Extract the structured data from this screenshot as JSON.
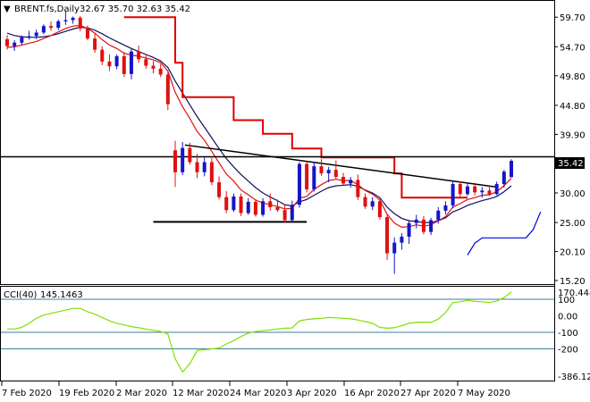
{
  "header": {
    "symbol_label": "BRENT.fs,Daily",
    "ohlc": "32.67 35.70 32.63 35.42"
  },
  "cci_header": {
    "label": "CCI(40)",
    "value": "145.1463"
  },
  "price_badge": "35.42",
  "cci_badge": "170.4447",
  "colors": {
    "bull": "#1515c8",
    "bear": "#e01010",
    "ma_fast": "#e01010",
    "ma_slow": "#101060",
    "stop_red": "#e00000",
    "stop_blue": "#0000e0",
    "cci": "#80e000",
    "cci_level": "#3c7f9a",
    "trend": "#000000"
  },
  "chart_data": [
    {
      "type": "candlestick",
      "y_ticks": [
        "59.70",
        "54.70",
        "49.80",
        "44.80",
        "39.90",
        "35.00",
        "30.00",
        "25.00",
        "20.10",
        "15.20"
      ],
      "ylim": [
        15.2,
        62.0
      ],
      "x_ticks": [
        "7 Feb 2020",
        "19 Feb 2020",
        "2 Mar 2020",
        "12 Mar 2020",
        "24 Mar 2020",
        "3 Apr 2020",
        "16 Apr 2020",
        "27 Apr 2020",
        "7 May 2020"
      ],
      "candles": [
        [
          56,
          56.7,
          54.2,
          54.8
        ],
        [
          54.8,
          55.8,
          54.0,
          55.4
        ],
        [
          55.4,
          56.6,
          55.0,
          56.3
        ],
        [
          56.3,
          57.4,
          55.9,
          56.5
        ],
        [
          56.5,
          57.6,
          56.0,
          57.1
        ],
        [
          57.1,
          58.5,
          56.8,
          58.2
        ],
        [
          58.2,
          59.0,
          57.4,
          57.9
        ],
        [
          57.9,
          59.3,
          57.5,
          59.0
        ],
        [
          59.0,
          60.8,
          58.4,
          59.2
        ],
        [
          59.2,
          59.8,
          58.6,
          59.6
        ],
        [
          59.6,
          59.9,
          57.3,
          57.8
        ],
        [
          57.8,
          58.3,
          55.8,
          56.1
        ],
        [
          56.1,
          56.9,
          53.7,
          54.2
        ],
        [
          54.2,
          54.8,
          51.6,
          52.2
        ],
        [
          52.2,
          53.4,
          50.6,
          51.4
        ],
        [
          51.4,
          53.4,
          50.9,
          53.1
        ],
        [
          53.1,
          53.8,
          49.6,
          50.1
        ],
        [
          50.1,
          54.4,
          49.2,
          53.9
        ],
        [
          53.9,
          54.9,
          52.0,
          52.6
        ],
        [
          52.6,
          53.4,
          51.0,
          51.5
        ],
        [
          51.5,
          52.3,
          50.2,
          51.0
        ],
        [
          51.0,
          51.8,
          49.6,
          50.0
        ],
        [
          50.0,
          50.5,
          44.0,
          45.0
        ],
        [
          37.2,
          38.8,
          31.0,
          33.5
        ],
        [
          33.5,
          38.6,
          33.0,
          37.6
        ],
        [
          37.6,
          38.5,
          34.8,
          35.2
        ],
        [
          35.2,
          36.6,
          32.5,
          33.5
        ],
        [
          33.5,
          36.0,
          32.8,
          35.2
        ],
        [
          35.2,
          35.9,
          31.3,
          31.8
        ],
        [
          31.8,
          32.8,
          28.9,
          29.3
        ],
        [
          29.3,
          30.3,
          26.6,
          27.1
        ],
        [
          27.1,
          29.9,
          26.8,
          29.4
        ],
        [
          29.4,
          29.9,
          26.1,
          26.6
        ],
        [
          26.6,
          29.1,
          26.3,
          28.5
        ],
        [
          28.5,
          28.9,
          26.0,
          26.3
        ],
        [
          26.3,
          29.1,
          26.0,
          28.6
        ],
        [
          28.6,
          29.9,
          27.0,
          27.6
        ],
        [
          27.6,
          28.9,
          26.8,
          27.1
        ],
        [
          27.1,
          28.1,
          25.0,
          25.4
        ],
        [
          25.4,
          28.7,
          25.1,
          28.0
        ],
        [
          28.0,
          35.2,
          27.5,
          34.9
        ],
        [
          34.9,
          35.3,
          30.1,
          30.6
        ],
        [
          30.6,
          35.2,
          30.2,
          34.5
        ],
        [
          34.5,
          35.7,
          32.9,
          33.3
        ],
        [
          33.3,
          34.4,
          31.8,
          33.9
        ],
        [
          33.9,
          35.5,
          32.3,
          32.7
        ],
        [
          32.7,
          33.4,
          31.2,
          31.6
        ],
        [
          31.6,
          32.7,
          30.9,
          32.2
        ],
        [
          32.2,
          33.1,
          28.8,
          29.3
        ],
        [
          29.3,
          29.9,
          27.3,
          27.7
        ],
        [
          27.7,
          29.3,
          27.1,
          28.6
        ],
        [
          28.6,
          29.0,
          25.5,
          25.9
        ],
        [
          25.9,
          26.3,
          18.7,
          19.8
        ],
        [
          19.8,
          22.5,
          16.3,
          21.6
        ],
        [
          21.6,
          23.2,
          20.4,
          22.6
        ],
        [
          22.6,
          25.4,
          21.4,
          24.9
        ],
        [
          24.9,
          26.3,
          24.0,
          25.5
        ],
        [
          25.5,
          26.1,
          23.0,
          23.4
        ],
        [
          23.4,
          25.8,
          22.9,
          25.4
        ],
        [
          25.4,
          27.6,
          24.8,
          27.0
        ],
        [
          27.0,
          28.6,
          26.4,
          27.9
        ],
        [
          27.9,
          31.9,
          27.4,
          31.5
        ],
        [
          31.5,
          31.9,
          29.3,
          29.8
        ],
        [
          29.8,
          31.8,
          29.5,
          31.1
        ],
        [
          31.1,
          31.7,
          29.6,
          30.1
        ],
        [
          30.1,
          31.0,
          29.2,
          30.4
        ],
        [
          30.4,
          31.2,
          29.5,
          29.8
        ],
        [
          29.8,
          31.9,
          29.6,
          31.5
        ],
        [
          31.5,
          33.9,
          30.9,
          33.6
        ],
        [
          32.67,
          35.7,
          32.63,
          35.42
        ]
      ],
      "ma_fast": [
        54.6,
        54.7,
        55.0,
        55.3,
        55.6,
        56.1,
        56.6,
        57.2,
        57.8,
        58.2,
        58.3,
        57.8,
        57.0,
        55.9,
        55.0,
        54.4,
        53.6,
        53.3,
        53.1,
        52.8,
        52.5,
        52.0,
        50.6,
        47.0,
        44.6,
        42.6,
        40.4,
        38.9,
        37.0,
        35.1,
        33.2,
        32.0,
        30.5,
        29.7,
        28.8,
        28.3,
        28.0,
        27.7,
        27.3,
        27.4,
        29.1,
        29.4,
        30.6,
        31.4,
        32.1,
        32.3,
        32.1,
        32.1,
        31.4,
        30.4,
        29.8,
        28.8,
        26.4,
        24.9,
        24.2,
        24.3,
        24.6,
        24.4,
        24.6,
        25.3,
        26.0,
        27.6,
        28.2,
        28.9,
        29.2,
        29.6,
        29.7,
        30.2,
        31.2,
        32.5
      ],
      "ma_slow": [
        57.0,
        56.6,
        56.4,
        56.3,
        56.3,
        56.4,
        56.6,
        56.9,
        57.3,
        57.7,
        58.0,
        57.9,
        57.5,
        56.9,
        56.2,
        55.6,
        55.0,
        54.4,
        53.9,
        53.4,
        52.9,
        52.3,
        51.2,
        48.9,
        46.9,
        44.9,
        42.9,
        41.1,
        39.3,
        37.5,
        35.8,
        34.4,
        33.1,
        32.0,
        30.9,
        30.0,
        29.3,
        28.7,
        28.0,
        27.8,
        28.5,
        28.9,
        29.6,
        30.3,
        30.9,
        31.2,
        31.3,
        31.4,
        31.1,
        30.5,
        30.0,
        29.2,
        27.6,
        26.5,
        25.7,
        25.3,
        25.2,
        25.0,
        25.0,
        25.3,
        25.8,
        26.8,
        27.3,
        27.9,
        28.3,
        28.7,
        29.0,
        29.4,
        30.2,
        31.2
      ],
      "stop_red": [
        null,
        null,
        null,
        null,
        null,
        null,
        null,
        null,
        null,
        null,
        null,
        null,
        null,
        null,
        null,
        null,
        59.7,
        59.7,
        59.7,
        59.7,
        59.7,
        59.7,
        59.7,
        52.0,
        46.2,
        46.2,
        46.2,
        46.2,
        46.2,
        46.2,
        46.2,
        42.3,
        42.3,
        42.3,
        42.3,
        40.0,
        40.0,
        40.0,
        40.0,
        37.5,
        37.5,
        37.5,
        37.5,
        36.0,
        36.0,
        36.0,
        36.0,
        36.0,
        36.0,
        36.0,
        36.0,
        36.0,
        36.0,
        33.3,
        29.2,
        29.2,
        29.2,
        29.2,
        29.2,
        29.2,
        29.2,
        29.2,
        29.2,
        29.2,
        null,
        null,
        null,
        null,
        null,
        null
      ],
      "stop_blue": [
        null,
        null,
        null,
        null,
        null,
        null,
        null,
        null,
        null,
        null,
        null,
        null,
        null,
        null,
        null,
        null,
        null,
        null,
        null,
        null,
        null,
        null,
        null,
        null,
        null,
        null,
        null,
        null,
        null,
        null,
        null,
        null,
        null,
        null,
        null,
        null,
        null,
        null,
        null,
        null,
        null,
        null,
        null,
        null,
        null,
        null,
        null,
        null,
        null,
        null,
        null,
        null,
        null,
        null,
        null,
        null,
        null,
        null,
        null,
        null,
        null,
        null,
        null,
        19.5,
        21.5,
        22.4,
        22.4,
        22.4,
        22.4,
        22.4,
        22.4,
        22.4,
        23.8,
        26.8
      ],
      "horizontal_lines": [
        36.1,
        25.1
      ],
      "trendline": [
        [
          5,
          38.1
        ],
        [
          67,
          31.0
        ]
      ]
    },
    {
      "type": "line",
      "name": "CCI(40)",
      "y_ticks": [
        "170.4447",
        "100",
        "0.00",
        "-100",
        "-200",
        "-386.12"
      ],
      "levels": [
        100,
        -100,
        -200
      ],
      "ylim": [
        -386.12,
        170.4447
      ],
      "values": [
        -80,
        -80,
        -70,
        -45,
        -15,
        5,
        15,
        25,
        35,
        45,
        45,
        25,
        10,
        -10,
        -30,
        -45,
        -55,
        -65,
        -72,
        -80,
        -88,
        -95,
        -110,
        -260,
        -340,
        -290,
        -210,
        -205,
        -200,
        -195,
        -170,
        -150,
        -125,
        -105,
        -95,
        -90,
        -85,
        -80,
        -75,
        -73,
        -30,
        -22,
        -18,
        -15,
        -10,
        -12,
        -15,
        -18,
        -25,
        -35,
        -45,
        -70,
        -75,
        -72,
        -60,
        -45,
        -40,
        -38,
        -40,
        -20,
        20,
        80,
        85,
        95,
        88,
        85,
        80,
        90,
        110,
        145.1463
      ]
    }
  ]
}
